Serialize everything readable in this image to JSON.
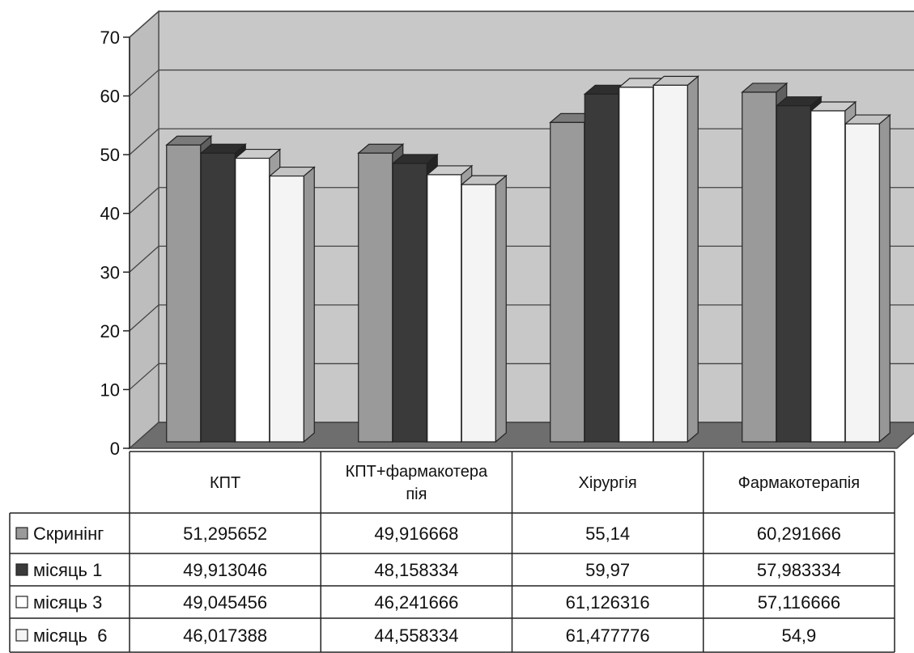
{
  "chart_data": {
    "type": "bar",
    "categories": [
      "КПТ",
      "КПТ+фармакотера пія",
      "Хірургія",
      "Фармакотерапія"
    ],
    "category_lines": [
      [
        "КПТ"
      ],
      [
        "КПТ+фармакотера",
        "пія"
      ],
      [
        "Хірургія"
      ],
      [
        "Фармакотерапія"
      ]
    ],
    "series": [
      {
        "name": "Скринінг",
        "values": [
          51.295652,
          49.916668,
          55.14,
          60.291666
        ],
        "labels": [
          "51,295652",
          "49,916668",
          "55,14",
          "60,291666"
        ],
        "color": "#9a9a9a"
      },
      {
        "name": "місяць 1",
        "values": [
          49.913046,
          48.158334,
          59.97,
          57.983334
        ],
        "labels": [
          "49,913046",
          "48,158334",
          "59,97",
          "57,983334"
        ],
        "color": "#3a3a3a"
      },
      {
        "name": "місяць 3",
        "values": [
          49.045456,
          46.241666,
          61.126316,
          57.116666
        ],
        "labels": [
          "49,045456",
          "46,241666",
          "61,126316",
          "57,116666"
        ],
        "color": "#ffffff"
      },
      {
        "name": "місяць  6",
        "values": [
          46.017388,
          44.558334,
          61.477776,
          54.9
        ],
        "labels": [
          "46,017388",
          "44,558334",
          "61,477776",
          "54,9"
        ],
        "color": "#f4f4f4"
      }
    ],
    "yticks": [
      "0",
      "10",
      "20",
      "30",
      "40",
      "50",
      "60",
      "70"
    ],
    "ylim": [
      0,
      70
    ],
    "grid": true,
    "legend": "data-table",
    "style": "3d-clustered-column",
    "wall_color": "#c8c8c8",
    "floor_color": "#6e6e6e"
  }
}
